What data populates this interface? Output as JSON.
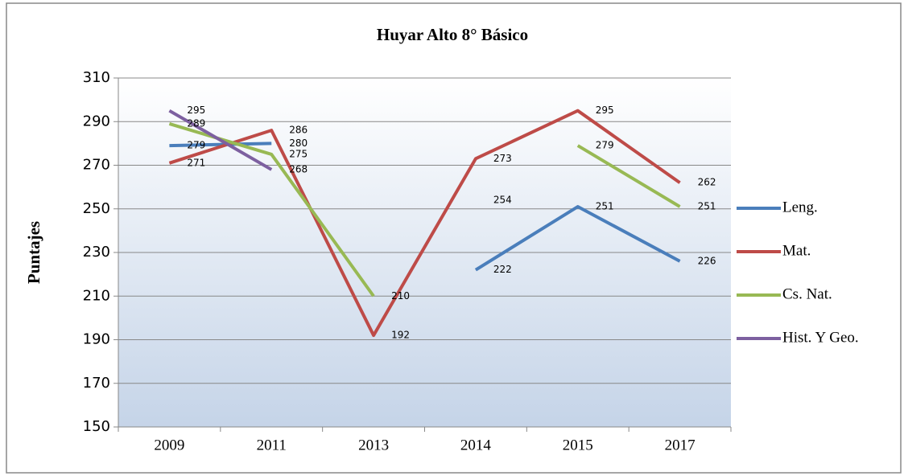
{
  "chart_data": {
    "type": "line",
    "title": "Huyar Alto 8° Básico",
    "y_label": "Puntajes",
    "categories": [
      "2009",
      "2011",
      "2013",
      "2014",
      "2015",
      "2017"
    ],
    "series": [
      {
        "name": "Leng.",
        "color": "#4a7ebb",
        "values": [
          279,
          280,
          null,
          222,
          251,
          226
        ]
      },
      {
        "name": "Mat.",
        "color": "#be4b48",
        "values": [
          271,
          286,
          192,
          273,
          295,
          262
        ]
      },
      {
        "name": "Cs. Nat.",
        "color": "#98b954",
        "values": [
          289,
          275,
          210,
          null,
          279,
          251
        ]
      },
      {
        "name": "Hist. Y Geo.",
        "color": "#7d60a0",
        "values": [
          295,
          268,
          null,
          254,
          null,
          null
        ]
      }
    ],
    "ylim": [
      150,
      310
    ],
    "yticks": [
      150,
      170,
      190,
      210,
      230,
      250,
      270,
      290,
      310
    ],
    "grid": true,
    "legend": "right"
  }
}
